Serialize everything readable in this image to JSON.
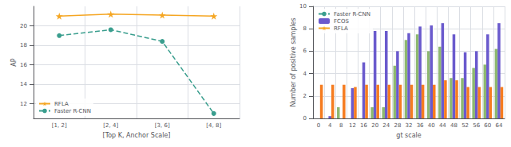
{
  "chart_data": [
    {
      "type": "line",
      "categories": [
        "[1, 2]",
        "[2, 4]",
        "[3, 6]",
        "[4, 8]"
      ],
      "series": [
        {
          "name": "RFLA",
          "color": "#f5a623",
          "marker": "star",
          "line_style": "solid",
          "values": [
            21.0,
            21.2,
            21.1,
            21.0
          ]
        },
        {
          "name": "Faster R-CNN",
          "color": "#3a9e8e",
          "marker": "circle",
          "line_style": "dashed",
          "values": [
            19.0,
            19.6,
            18.4,
            11.0
          ]
        }
      ],
      "xlabel": "[Top K, Anchor Scale]",
      "ylabel": "AP",
      "ylim": [
        10.5,
        22.0
      ],
      "yticks": [
        12,
        14,
        16,
        18,
        20
      ],
      "grid": true,
      "legend": "lower left"
    },
    {
      "type": "bar",
      "categories": [
        "0",
        "4",
        "8",
        "12",
        "16",
        "20",
        "24",
        "28",
        "32",
        "36",
        "40",
        "44",
        "48",
        "52",
        "56",
        "60",
        "64"
      ],
      "series": [
        {
          "name": "Faster R-CNN",
          "color": "#8db870",
          "values": [
            0,
            0,
            1.0,
            0,
            0,
            1.0,
            1.0,
            4.7,
            7.0,
            7.5,
            6.0,
            6.4,
            3.6,
            3.6,
            4.5,
            4.8,
            6.2
          ]
        },
        {
          "name": "FCOS",
          "color": "#6a5acd",
          "values": [
            0,
            0.2,
            0,
            2.7,
            5.0,
            7.8,
            7.8,
            6.0,
            7.6,
            8.2,
            8.3,
            8.5,
            7.5,
            5.9,
            6.0,
            7.5,
            8.5
          ]
        },
        {
          "name": "RFLA",
          "color": "#f57c20",
          "values": [
            3.0,
            3.0,
            3.0,
            2.8,
            3.0,
            3.0,
            3.0,
            3.0,
            3.0,
            3.0,
            3.0,
            3.4,
            3.4,
            2.8,
            2.8,
            2.8,
            2.8
          ]
        }
      ],
      "xlabel": "gt scale",
      "ylabel": "Number of positive samples",
      "ylim": [
        0,
        10
      ],
      "yticks": [
        0,
        2,
        4,
        6,
        8,
        10
      ],
      "grid": true,
      "legend": "upper left"
    }
  ]
}
